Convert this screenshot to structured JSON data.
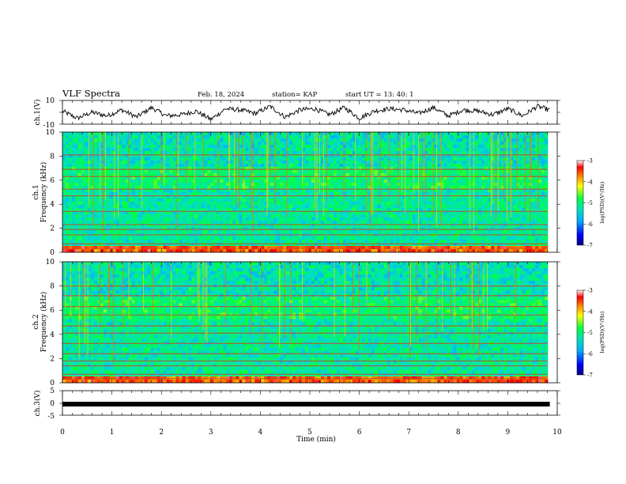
{
  "header": {
    "title": "VLF Spectra",
    "date": "Feb. 18, 2024",
    "station": "station= KAP",
    "start": "start  UT  =   13: 40: 1"
  },
  "colors": {
    "background": "#ffffff",
    "axes": "#000000",
    "spectrogram_base": "#3ecfa0",
    "colormap": [
      "#000080",
      "#0000ff",
      "#00aaff",
      "#00e0c0",
      "#00ff40",
      "#ffff00",
      "#ff8000",
      "#ff0000",
      "#ffffff"
    ]
  },
  "chart_data": [
    {
      "type": "line",
      "name": "ch1-waveform",
      "ylabel": "ch.1(V)",
      "ylim": [
        -10,
        10
      ],
      "y_tick_labels": [
        "10",
        "-10"
      ],
      "xlim": [
        0,
        10
      ],
      "description_values": {
        "x": [
          0.0,
          0.3,
          0.6,
          0.9,
          1.2,
          1.5,
          1.8,
          2.1,
          2.4,
          2.7,
          3.0,
          3.3,
          3.6,
          3.9,
          4.2,
          4.5,
          4.8,
          5.1,
          5.4,
          5.7,
          6.0,
          6.3,
          6.6,
          6.9,
          7.2,
          7.5,
          7.8,
          8.1,
          8.4,
          8.7,
          9.0,
          9.3,
          9.6,
          9.85
        ],
        "y": [
          1,
          -5,
          0,
          -3,
          2,
          -4,
          4,
          -3,
          -2,
          1,
          -6,
          3,
          2,
          -1,
          5,
          -4,
          2,
          3,
          -2,
          4,
          -5,
          1,
          3,
          2,
          -1,
          4,
          -3,
          2,
          1,
          -2,
          3,
          -3,
          5,
          2
        ]
      }
    },
    {
      "type": "heatmap",
      "name": "ch1-spectrogram",
      "ylabel": "ch.1\nFrequency (kHz)",
      "ylim": [
        0,
        10
      ],
      "y_tick_labels": [
        "0",
        "2",
        "4",
        "6",
        "8",
        "10"
      ],
      "xlim": [
        0,
        10
      ],
      "colorbar": {
        "label": "log(PSD)(V²/Hz)",
        "range": [
          -7,
          -3
        ],
        "tick_labels": [
          "-3",
          "-4",
          "-5",
          "-6",
          "-7"
        ]
      }
    },
    {
      "type": "heatmap",
      "name": "ch2-spectrogram",
      "ylabel": "ch.2\nFrequency (kHz)",
      "ylim": [
        0,
        10
      ],
      "y_tick_labels": [
        "0",
        "2",
        "4",
        "6",
        "8",
        "10"
      ],
      "xlim": [
        0,
        10
      ],
      "colorbar": {
        "label": "log(PSD)(V²/Hz)",
        "range": [
          -7,
          -3
        ],
        "tick_labels": [
          "-3",
          "-4",
          "-5",
          "-6",
          "-7"
        ]
      }
    },
    {
      "type": "line",
      "name": "ch3-signal",
      "ylabel": "ch.3(V)",
      "ylim": [
        -5,
        5
      ],
      "y_tick_labels": [
        "5",
        "0",
        "-5"
      ],
      "xlim": [
        0,
        10
      ],
      "xlabel": "Time  (min)",
      "x_tick_labels": [
        "0",
        "1",
        "2",
        "3",
        "4",
        "5",
        "6",
        "7",
        "8",
        "9",
        "10"
      ],
      "x": [
        0,
        9.85
      ],
      "y": [
        0,
        0
      ]
    }
  ]
}
